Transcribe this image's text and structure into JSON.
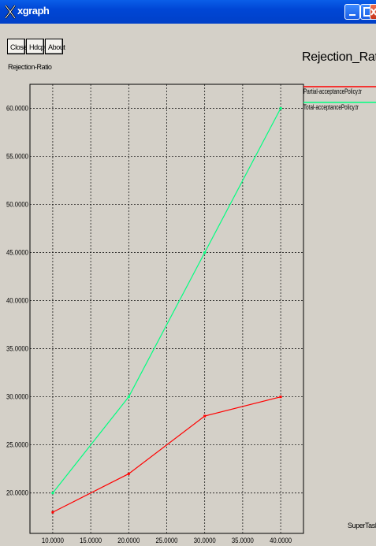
{
  "window": {
    "title": "xgraph"
  },
  "toolbar": {
    "close_label": "Close",
    "hdcpy_label": "Hdcpy",
    "about_label": "About"
  },
  "footer": {
    "text": "SuperTask_Sl"
  },
  "chart_data": {
    "type": "line",
    "title": "Rejection_Ratio",
    "ylabel": "Rejection-Ratio",
    "xlabel": "",
    "xlim": [
      7.0,
      43.0
    ],
    "ylim": [
      15.8,
      62.5
    ],
    "x_ticks": [
      10,
      15,
      20,
      25,
      30,
      35,
      40
    ],
    "y_ticks": [
      20,
      25,
      30,
      35,
      40,
      45,
      50,
      55,
      60
    ],
    "x_tick_labels": [
      "10.0000",
      "15.0000",
      "20.0000",
      "25.0000",
      "30.0000",
      "35.0000",
      "40.0000"
    ],
    "y_tick_labels": [
      "20.0000",
      "25.0000",
      "30.0000",
      "35.0000",
      "40.0000",
      "45.0000",
      "50.0000",
      "55.0000",
      "60.0000"
    ],
    "grid": true,
    "legend_position": "right",
    "series": [
      {
        "name": "Partial-acceptancePolicy.tr",
        "color": "#ff0000",
        "x": [
          10,
          20,
          30,
          40
        ],
        "y": [
          18,
          22,
          28,
          30
        ]
      },
      {
        "name": "Total-acceptancePolicy.tr",
        "color": "#00ff80",
        "x": [
          10,
          20,
          30,
          40
        ],
        "y": [
          20,
          30,
          45,
          60
        ]
      }
    ]
  }
}
